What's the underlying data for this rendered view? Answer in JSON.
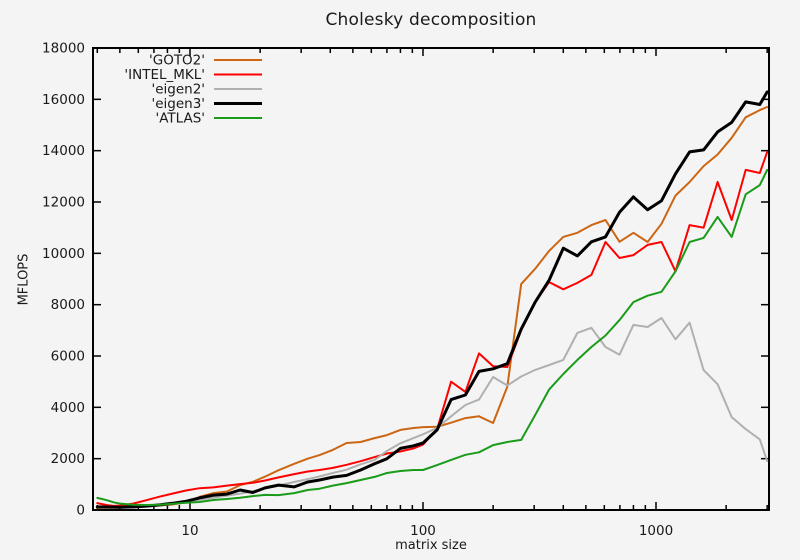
{
  "chart_data": {
    "type": "line",
    "title": "Cholesky decomposition",
    "xlabel": "matrix size",
    "ylabel": "MFLOPS",
    "x_scale": "log10",
    "xlim": [
      3.8,
      3060
    ],
    "ylim": [
      0,
      18000
    ],
    "x_major_ticks": [
      10,
      100,
      1000
    ],
    "x_major_tick_labels": [
      "10",
      "100",
      "1000"
    ],
    "y_major_ticks": [
      0,
      2000,
      4000,
      6000,
      8000,
      10000,
      12000,
      14000,
      16000,
      18000
    ],
    "grid": false,
    "legend_position": "top-left-inside",
    "text_color": "#1a1a1a",
    "background_color": "#f4f4f4",
    "categories": [
      4,
      4.4,
      4.7,
      5,
      5.7,
      6.5,
      7.4,
      8.4,
      9.6,
      11,
      12.6,
      14.4,
      16.4,
      18.6,
      21,
      24,
      28,
      32,
      36,
      41,
      47,
      54,
      62,
      70,
      80,
      91,
      100,
      115,
      132,
      152,
      174,
      200,
      230,
      264,
      303,
      348,
      400,
      460,
      528,
      607,
      697,
      800,
      920,
      1056,
      1213,
      1394,
      1601,
      1839,
      2113,
      2427,
      2788,
      3000
    ],
    "series": [
      {
        "name": "'GOTO2'",
        "color": "#cc6613",
        "line_width": 2,
        "values": [
          80,
          85,
          90,
          95,
          110,
          140,
          175,
          215,
          300,
          510,
          660,
          720,
          970,
          1100,
          1300,
          1550,
          1800,
          2000,
          2140,
          2340,
          2610,
          2650,
          2800,
          2920,
          3120,
          3195,
          3230,
          3240,
          3400,
          3580,
          3650,
          3390,
          4800,
          8800,
          9400,
          10100,
          10640,
          10800,
          11100,
          11300,
          10450,
          10800,
          10440,
          11150,
          12250,
          12780,
          13400,
          13850,
          14500,
          15300,
          15580,
          15700
        ]
      },
      {
        "name": "'INTEL_MKL'",
        "color": "#ff0000",
        "line_width": 2,
        "values": [
          270,
          190,
          160,
          170,
          250,
          380,
          520,
          640,
          760,
          850,
          880,
          950,
          1010,
          1060,
          1150,
          1270,
          1400,
          1500,
          1560,
          1640,
          1760,
          1900,
          2060,
          2200,
          2280,
          2400,
          2550,
          3150,
          5000,
          4600,
          6100,
          5600,
          5570,
          7000,
          8100,
          8880,
          8600,
          8850,
          9160,
          10440,
          9820,
          9930,
          10330,
          10440,
          9300,
          11100,
          11000,
          12780,
          11300,
          13250,
          13130,
          13950
        ]
      },
      {
        "name": "'eigen2'",
        "color": "#b0b0b0",
        "line_width": 2,
        "values": [
          120,
          112,
          108,
          105,
          115,
          140,
          185,
          250,
          330,
          400,
          480,
          560,
          640,
          730,
          850,
          960,
          1090,
          1200,
          1310,
          1440,
          1570,
          1780,
          1950,
          2300,
          2600,
          2800,
          2950,
          3200,
          3650,
          4090,
          4300,
          5180,
          4850,
          5200,
          5460,
          5650,
          5850,
          6900,
          7100,
          6350,
          6050,
          7210,
          7130,
          7480,
          6650,
          7300,
          5450,
          4900,
          3620,
          3150,
          2750,
          1900
        ]
      },
      {
        "name": "'eigen3'",
        "color": "#000000",
        "line_width": 3,
        "values": [
          120,
          115,
          112,
          110,
          120,
          150,
          200,
          260,
          340,
          470,
          580,
          620,
          780,
          680,
          860,
          970,
          900,
          1090,
          1170,
          1280,
          1350,
          1560,
          1800,
          2000,
          2400,
          2500,
          2610,
          3120,
          4300,
          4480,
          5400,
          5500,
          5700,
          7050,
          8100,
          8960,
          10200,
          9900,
          10450,
          10640,
          11600,
          12200,
          11700,
          12050,
          13100,
          13950,
          14030,
          14730,
          15100,
          15900,
          15800,
          16290
        ]
      },
      {
        "name": "'ATLAS'",
        "color": "#1a9b1a",
        "line_width": 2,
        "values": [
          470,
          380,
          300,
          250,
          205,
          195,
          205,
          240,
          280,
          310,
          390,
          430,
          480,
          540,
          590,
          580,
          660,
          780,
          830,
          950,
          1050,
          1170,
          1290,
          1440,
          1520,
          1560,
          1560,
          1750,
          1950,
          2150,
          2250,
          2530,
          2650,
          2730,
          3700,
          4700,
          5300,
          5850,
          6350,
          6800,
          7400,
          8100,
          8350,
          8500,
          9300,
          10440,
          10600,
          11420,
          10640,
          12300,
          12660,
          13250
        ]
      }
    ]
  }
}
